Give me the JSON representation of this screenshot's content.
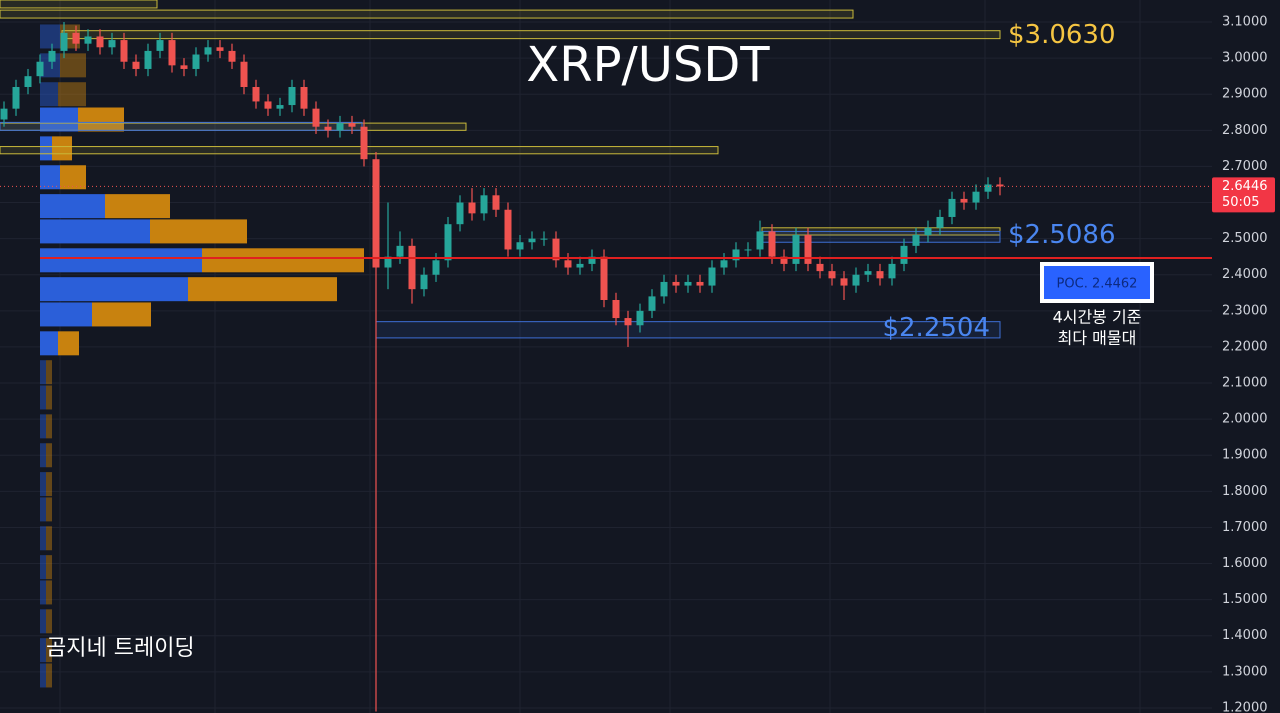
{
  "chart_data": {
    "type": "candlestick",
    "title": "XRP/USDT",
    "watermark": "곰지네 트레이딩",
    "ylim": [
      1.186,
      3.161
    ],
    "yticks": [
      {
        "value": 3.1,
        "label": "3.1000"
      },
      {
        "value": 3.0,
        "label": "3.0000"
      },
      {
        "value": 2.9,
        "label": "2.9000"
      },
      {
        "value": 2.8,
        "label": "2.8000"
      },
      {
        "value": 2.7,
        "label": "2.7000"
      },
      {
        "value": 2.6,
        "label": "2.6000"
      },
      {
        "value": 2.5,
        "label": "2.5000"
      },
      {
        "value": 2.4,
        "label": "2.4000"
      },
      {
        "value": 2.3,
        "label": "2.3000"
      },
      {
        "value": 2.2,
        "label": "2.2000"
      },
      {
        "value": 2.1,
        "label": "2.1000"
      },
      {
        "value": 2.0,
        "label": "2.0000"
      },
      {
        "value": 1.9,
        "label": "1.9000"
      },
      {
        "value": 1.8,
        "label": "1.8000"
      },
      {
        "value": 1.7,
        "label": "1.7000"
      },
      {
        "value": 1.6,
        "label": "1.6000"
      },
      {
        "value": 1.5,
        "label": "1.5000"
      },
      {
        "value": 1.4,
        "label": "1.4000"
      },
      {
        "value": 1.3,
        "label": "1.3000"
      },
      {
        "value": 1.2,
        "label": "1.2000"
      }
    ],
    "grid": true,
    "up_color": "#26a69a",
    "down_color": "#ef5350",
    "open": [
      2.83,
      2.86,
      2.92,
      2.95,
      2.99,
      3.02,
      3.07,
      3.04,
      3.06,
      3.03,
      3.05,
      2.99,
      2.97,
      3.02,
      3.05,
      2.98,
      2.97,
      3.01,
      3.03,
      3.02,
      2.99,
      2.92,
      2.88,
      2.86,
      2.87,
      2.92,
      2.86,
      2.81,
      2.8,
      2.82,
      2.81,
      2.72,
      2.42,
      2.45,
      2.48,
      2.36,
      2.4,
      2.44,
      2.54,
      2.6,
      2.57,
      2.62,
      2.58,
      2.47,
      2.49,
      2.5,
      2.5,
      2.44,
      2.42,
      2.43,
      2.45,
      2.33,
      2.28,
      2.26,
      2.3,
      2.34,
      2.38,
      2.37,
      2.38,
      2.37,
      2.42,
      2.44,
      2.47,
      2.47,
      2.52,
      2.45,
      2.43,
      2.51,
      2.43,
      2.41,
      2.39,
      2.37,
      2.4,
      2.41,
      2.39,
      2.43,
      2.48,
      2.51,
      2.53,
      2.56,
      2.61,
      2.6,
      2.63,
      2.65
    ],
    "high": [
      2.88,
      2.94,
      2.97,
      3.01,
      3.04,
      3.1,
      3.09,
      3.08,
      3.08,
      3.07,
      3.07,
      3.01,
      3.04,
      3.07,
      3.07,
      3.0,
      3.03,
      3.05,
      3.05,
      3.04,
      3.01,
      2.94,
      2.9,
      2.89,
      2.94,
      2.94,
      2.88,
      2.83,
      2.84,
      2.84,
      2.83,
      2.74,
      2.6,
      2.52,
      2.5,
      2.42,
      2.46,
      2.56,
      2.62,
      2.64,
      2.64,
      2.64,
      2.6,
      2.51,
      2.52,
      2.52,
      2.52,
      2.46,
      2.45,
      2.47,
      2.47,
      2.35,
      2.3,
      2.32,
      2.36,
      2.4,
      2.4,
      2.4,
      2.4,
      2.44,
      2.46,
      2.49,
      2.49,
      2.55,
      2.54,
      2.47,
      2.53,
      2.53,
      2.45,
      2.43,
      2.41,
      2.42,
      2.43,
      2.43,
      2.45,
      2.5,
      2.53,
      2.55,
      2.58,
      2.63,
      2.63,
      2.65,
      2.67,
      2.67
    ],
    "low": [
      2.81,
      2.84,
      2.9,
      2.93,
      2.97,
      3.0,
      3.02,
      3.02,
      3.01,
      3.01,
      2.97,
      2.95,
      2.95,
      3.0,
      2.96,
      2.95,
      2.95,
      2.99,
      3.0,
      2.97,
      2.9,
      2.86,
      2.84,
      2.84,
      2.85,
      2.84,
      2.79,
      2.78,
      2.78,
      2.79,
      2.7,
      1.19,
      2.36,
      2.43,
      2.32,
      2.34,
      2.38,
      2.42,
      2.52,
      2.55,
      2.55,
      2.56,
      2.45,
      2.45,
      2.47,
      2.48,
      2.42,
      2.4,
      2.4,
      2.41,
      2.31,
      2.26,
      2.2,
      2.24,
      2.28,
      2.32,
      2.35,
      2.35,
      2.35,
      2.35,
      2.4,
      2.42,
      2.45,
      2.45,
      2.43,
      2.41,
      2.41,
      2.41,
      2.39,
      2.37,
      2.33,
      2.35,
      2.38,
      2.37,
      2.37,
      2.41,
      2.46,
      2.49,
      2.51,
      2.54,
      2.58,
      2.58,
      2.61,
      2.62
    ],
    "close": [
      2.86,
      2.92,
      2.95,
      2.99,
      3.02,
      3.07,
      3.04,
      3.06,
      3.03,
      3.05,
      2.99,
      2.97,
      3.02,
      3.05,
      2.98,
      2.97,
      3.01,
      3.03,
      3.02,
      2.99,
      2.92,
      2.88,
      2.86,
      2.87,
      2.92,
      2.86,
      2.81,
      2.8,
      2.82,
      2.81,
      2.72,
      2.42,
      2.45,
      2.48,
      2.36,
      2.4,
      2.44,
      2.54,
      2.6,
      2.57,
      2.62,
      2.58,
      2.47,
      2.49,
      2.5,
      2.5,
      2.44,
      2.42,
      2.43,
      2.45,
      2.33,
      2.28,
      2.26,
      2.3,
      2.34,
      2.38,
      2.37,
      2.38,
      2.37,
      2.42,
      2.44,
      2.47,
      2.47,
      2.52,
      2.45,
      2.43,
      2.51,
      2.43,
      2.41,
      2.39,
      2.37,
      2.4,
      2.41,
      2.39,
      2.43,
      2.48,
      2.51,
      2.53,
      2.56,
      2.61,
      2.6,
      2.63,
      2.65,
      2.6446
    ],
    "current_price": 2.6446,
    "countdown": "50:05",
    "poc": {
      "value": 2.4462,
      "label": "POC. 2.4462",
      "note": [
        "4시간봉 기준",
        "최다 매물대"
      ]
    },
    "zones": [
      {
        "low": 3.139,
        "high": 3.161,
        "color": "#c9b93a"
      },
      {
        "low": 3.111,
        "high": 3.133,
        "color": "#c9b93a"
      },
      {
        "low": 3.054,
        "high": 3.076,
        "color": "#c9b93a",
        "level": {
          "value": 3.063,
          "label": "$3.0630"
        },
        "label_color": "#f5c542"
      },
      {
        "low": 2.8,
        "high": 2.82,
        "color": "#c9b93a"
      },
      {
        "low": 2.8,
        "high": 2.822,
        "color": "#3d6fd6"
      },
      {
        "low": 2.735,
        "high": 2.755,
        "color": "#c9b93a"
      },
      {
        "low": 2.51,
        "high": 2.53,
        "color": "#c9b93a"
      },
      {
        "low": 2.49,
        "high": 2.52,
        "color": "#3d6fd6",
        "level": {
          "value": 2.5086,
          "label": "$2.5086"
        },
        "label_color": "#4a86f0"
      },
      {
        "low": 2.225,
        "high": 2.27,
        "color": "#3d6fd6",
        "level": {
          "value": 2.2504,
          "label": "$2.2504"
        },
        "label_color": "#4a86f0"
      }
    ],
    "volume_profile": {
      "buy_color": "#2b5fd9",
      "sell_color": "#c8820f",
      "levels": [
        3.06,
        2.98,
        2.9,
        2.83,
        2.75,
        2.67,
        2.59,
        2.52,
        2.44,
        2.36,
        2.29,
        2.21,
        2.13,
        2.06,
        1.98,
        1.9,
        1.82,
        1.75,
        1.67,
        1.59,
        1.52,
        1.44,
        1.36,
        1.29
      ],
      "buy": [
        20,
        20,
        18,
        38,
        12,
        20,
        65,
        110,
        162,
        148,
        52,
        18,
        6,
        6,
        6,
        6,
        6,
        6,
        6,
        6,
        6,
        6,
        6,
        6
      ],
      "sell": [
        20,
        26,
        28,
        46,
        20,
        26,
        65,
        97,
        162,
        149,
        59,
        21,
        6,
        6,
        6,
        6,
        6,
        6,
        6,
        6,
        6,
        6,
        6,
        6
      ]
    }
  }
}
